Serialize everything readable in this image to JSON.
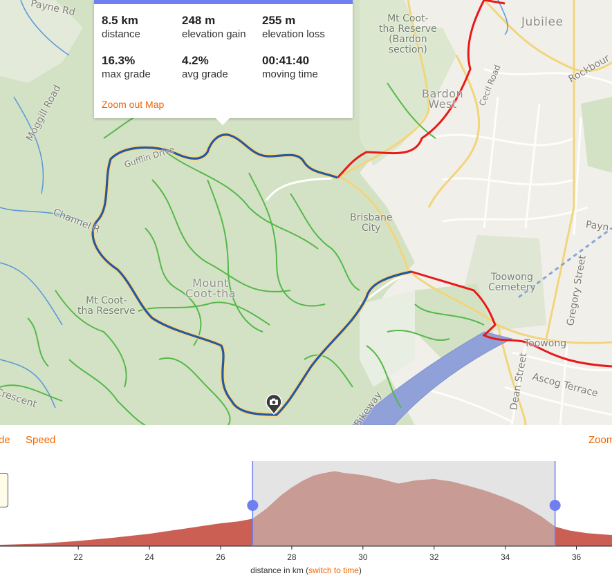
{
  "stats": {
    "items": [
      {
        "value": "8.5 km",
        "label": "distance"
      },
      {
        "value": "248 m",
        "label": "elevation gain"
      },
      {
        "value": "255 m",
        "label": "elevation loss"
      },
      {
        "value": "16.3%",
        "label": "max grade"
      },
      {
        "value": "4.2%",
        "label": "avg grade"
      },
      {
        "value": "00:41:40",
        "label": "moving time"
      }
    ],
    "zoom_out": "Zoom out Map"
  },
  "map": {
    "labels": {
      "payne_top": "Payne Rd",
      "moggill": "Moggill Road",
      "gulf": "Gufflin Drive",
      "channel": "Channel R",
      "mt_coot_reserve_left": "Mt Coot-\ntha Reserve",
      "mt_coot_reserve_top": "Mt Coot-\ntha Reserve\n(Bardon\nsection)",
      "jubilee": "Jubilee",
      "rockbourne": "Rockbour",
      "cecil": "Cecil Road",
      "bardon_west": "Bardon\nWest",
      "brisbane_city": "Brisbane\nCity",
      "mount": "Mount\nCoot-tha",
      "toowong_cem": "Toowong\nCemetery",
      "gregory": "Gregory Street",
      "payne_right": "Payn",
      "toowong": "Toowong",
      "dean": "Dean Street",
      "ascog": "Ascog Terrace",
      "crescent": "Crescent",
      "bikeway": "Bikeway"
    },
    "camera_icon": "camera-icon"
  },
  "chart_tabs": {
    "left_partial": "de",
    "speed": "Speed",
    "zoom_partial": "Zoom"
  },
  "chart_data": {
    "type": "area",
    "xlabel_prefix": "distance in km (",
    "xlabel_link": "switch to time",
    "xlabel_suffix": ")",
    "x_ticks": [
      22,
      24,
      26,
      28,
      30,
      32,
      34,
      36
    ],
    "x_range": [
      19.8,
      37.0
    ],
    "selection": [
      26.9,
      35.4
    ],
    "x": [
      19.8,
      21,
      22,
      23,
      24,
      25,
      25.5,
      26,
      26.5,
      26.9,
      27.3,
      27.7,
      28,
      28.3,
      28.6,
      28.9,
      29.2,
      29.5,
      30,
      30.5,
      31,
      31.5,
      32,
      32.5,
      33,
      33.5,
      34,
      34.5,
      35,
      35.4,
      35.8,
      36.3,
      37
    ],
    "y": [
      2,
      4,
      8,
      13,
      19,
      27,
      31,
      35,
      38,
      42,
      58,
      78,
      90,
      100,
      108,
      112,
      115,
      112,
      109,
      103,
      96,
      101,
      103,
      99,
      92,
      84,
      74,
      62,
      46,
      30,
      24,
      20,
      17
    ],
    "colors": {
      "fill": "#cc5f54",
      "selected_fill": "#c99b95",
      "selection_bg": "#e4e4e4",
      "handle": "#6f7ff0"
    }
  }
}
